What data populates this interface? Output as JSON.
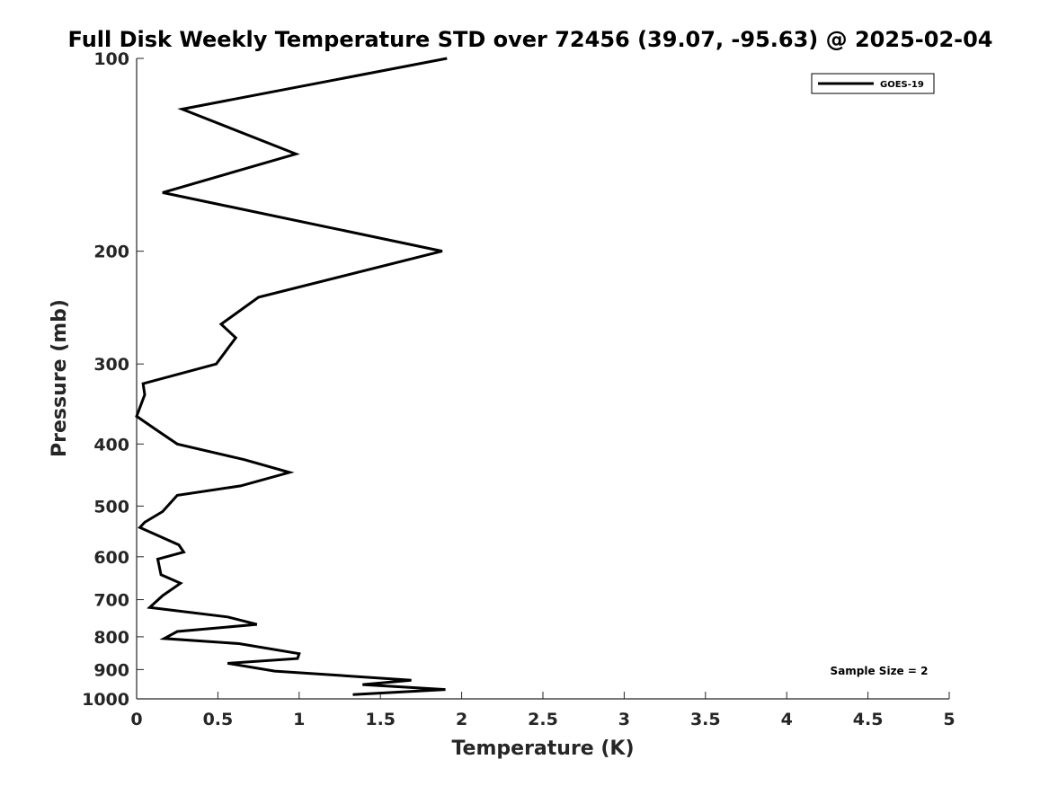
{
  "chart_data": {
    "type": "line",
    "title": "Full Disk Weekly Temperature STD over 72456 (39.07, -95.63) @ 2025-02-04",
    "xlabel": "Temperature (K)",
    "ylabel": "Pressure (mb)",
    "xlim": [
      0,
      5
    ],
    "ylim": [
      100,
      1000
    ],
    "yscale": "log",
    "y_reversed": true,
    "grid": false,
    "legend_position": "top-right",
    "x_ticks": [
      "0",
      "0.5",
      "1",
      "1.5",
      "2",
      "2.5",
      "3",
      "3.5",
      "4",
      "4.5",
      "5"
    ],
    "y_ticks": [
      "100",
      "200",
      "300",
      "400",
      "500",
      "600",
      "700",
      "800",
      "900",
      "1000"
    ],
    "series": [
      {
        "name": "GOES-19",
        "color": "#000000",
        "points": [
          [
            1.91,
            100
          ],
          [
            0.28,
            120
          ],
          [
            0.98,
            141
          ],
          [
            0.16,
            162
          ],
          [
            1.2,
            184
          ],
          [
            1.88,
            200
          ],
          [
            0.75,
            236
          ],
          [
            0.52,
            260
          ],
          [
            0.61,
            273
          ],
          [
            0.49,
            300
          ],
          [
            0.04,
            322
          ],
          [
            0.05,
            335
          ],
          [
            0.0,
            362
          ],
          [
            0.12,
            380
          ],
          [
            0.25,
            400
          ],
          [
            0.66,
            423
          ],
          [
            0.94,
            443
          ],
          [
            0.64,
            465
          ],
          [
            0.25,
            481
          ],
          [
            0.16,
            510
          ],
          [
            0.05,
            530
          ],
          [
            0.02,
            540
          ],
          [
            0.26,
            575
          ],
          [
            0.29,
            590
          ],
          [
            0.13,
            605
          ],
          [
            0.15,
            640
          ],
          [
            0.27,
            660
          ],
          [
            0.16,
            690
          ],
          [
            0.08,
            720
          ],
          [
            0.56,
            745
          ],
          [
            0.74,
            765
          ],
          [
            0.25,
            785
          ],
          [
            0.17,
            805
          ],
          [
            0.63,
            820
          ],
          [
            1.0,
            850
          ],
          [
            0.99,
            865
          ],
          [
            0.56,
            880
          ],
          [
            0.85,
            905
          ],
          [
            1.69,
            935
          ],
          [
            1.39,
            950
          ],
          [
            1.9,
            967
          ],
          [
            1.33,
            985
          ]
        ]
      }
    ],
    "annotation": "Sample Size = 2"
  }
}
